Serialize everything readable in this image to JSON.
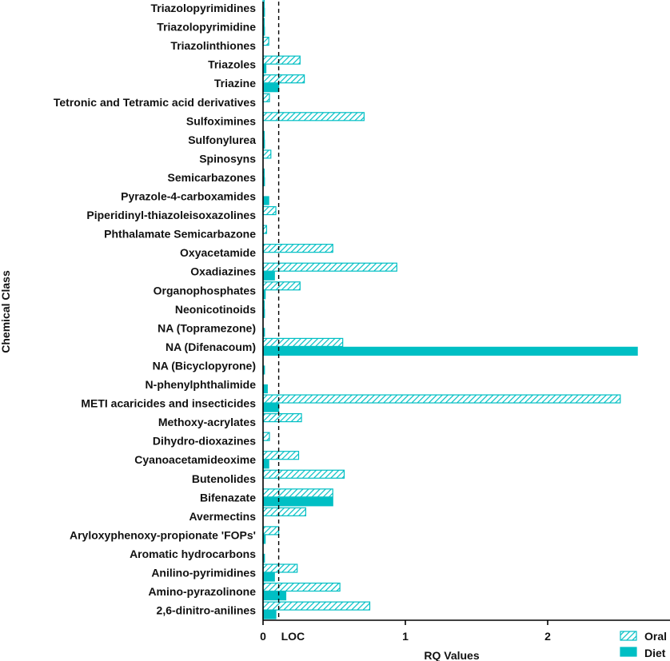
{
  "colors": {
    "accent": "#00BFC4",
    "axis": "#000000",
    "text": "#111111"
  },
  "chart_data": {
    "type": "bar",
    "orientation": "horizontal",
    "title": "",
    "xlabel": "RQ Values",
    "ylabel": "Chemical Class",
    "xlim": [
      0,
      2.85
    ],
    "xticks": [
      0,
      1,
      2
    ],
    "loc": {
      "label": "LOC",
      "value": 0.11
    },
    "legend_position": "bottom-right",
    "categories": [
      "Triazolopyrimidines",
      "Triazolopyrimidine",
      "Triazolinthiones",
      "Triazoles",
      "Triazine",
      "Tetronic and Tetramic acid derivatives",
      "Sulfoximines",
      "Sulfonylurea",
      "Spinosyns",
      "Semicarbazones",
      "Pyrazole-4-carboxamides",
      "Piperidinyl-thiazoleisoxazolines",
      "Phthalamate Semicarbazone",
      "Oxyacetamide",
      "Oxadiazines",
      "Organophosphates",
      "Neonicotinoids",
      "NA (Topramezone)",
      "NA (Difenacoum)",
      "NA (Bicyclopyrone)",
      "N-phenylphthalimide",
      "METI acaricides and insecticides",
      "Methoxy-acrylates",
      "Dihydro-dioxazines",
      "Cyanoacetamideoxime",
      "Butenolides",
      "Bifenazate",
      "Avermectins",
      "Aryloxyphenoxy-propionate 'FOPs'",
      "Aromatic hydrocarbons",
      "Anilino-pyrimidines",
      "Amino-pyrazolinone",
      "2,6-dinitro-anilines"
    ],
    "series": [
      {
        "name": "Oral",
        "pattern": "hatched",
        "values": [
          0.005,
          0.005,
          0.04,
          0.26,
          0.29,
          0.045,
          0.71,
          0.005,
          0.055,
          0.005,
          0.0,
          0.09,
          0.025,
          0.49,
          0.94,
          0.26,
          0.005,
          0.0,
          0.56,
          0.0,
          0.0,
          2.51,
          0.27,
          0.045,
          0.25,
          0.57,
          0.49,
          0.3,
          0.11,
          0.0,
          0.24,
          0.54,
          0.75
        ]
      },
      {
        "name": "Diet",
        "pattern": "solid",
        "values": [
          0.01,
          0.01,
          0.0,
          0.02,
          0.11,
          0.0,
          0.0,
          0.01,
          0.0,
          0.01,
          0.04,
          0.0,
          0.0,
          0.0,
          0.08,
          0.015,
          0.01,
          0.01,
          2.63,
          0.01,
          0.03,
          0.11,
          0.0,
          0.0,
          0.04,
          0.0,
          0.49,
          0.0,
          0.015,
          0.01,
          0.08,
          0.16,
          0.09
        ]
      }
    ]
  }
}
